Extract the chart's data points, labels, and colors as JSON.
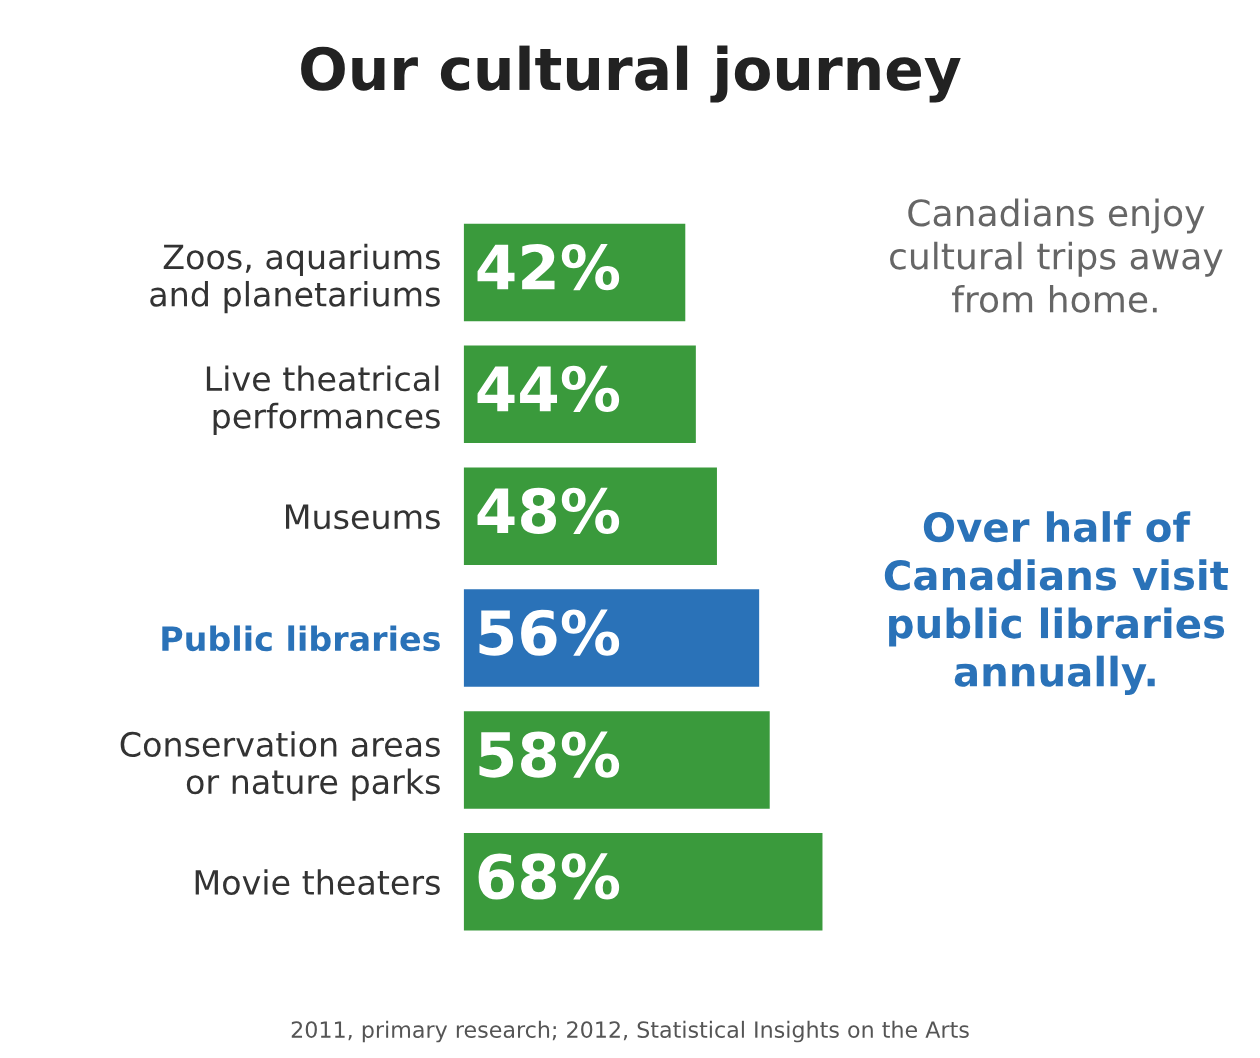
{
  "chart_data": {
    "type": "bar",
    "orientation": "horizontal",
    "title": "Our cultural journey",
    "categories": [
      "Zoos, aquariums\nand planetariums",
      "Live theatrical\nperformances",
      "Museums",
      "Public libraries",
      "Conservation areas\nor nature parks",
      "Movie theaters"
    ],
    "values": [
      42,
      44,
      48,
      56,
      58,
      68
    ],
    "colors": [
      "#3a9a3c",
      "#3a9a3c",
      "#3a9a3c",
      "#2a72b8",
      "#3a9a3c",
      "#3a9a3c"
    ],
    "value_labels": [
      "42%",
      "44%",
      "48%",
      "56%",
      "58%",
      "68%"
    ],
    "tick_labels": "y",
    "grid": false,
    "legend": false,
    "annotations": [
      "Canadians enjoy\ncultural trips away\nfrom home.",
      "Over half of\nCanadians visit\npublic libraries\nannually.",
      "2011, primary research; 2012, Statistical Insights on the Arts"
    ]
  }
}
